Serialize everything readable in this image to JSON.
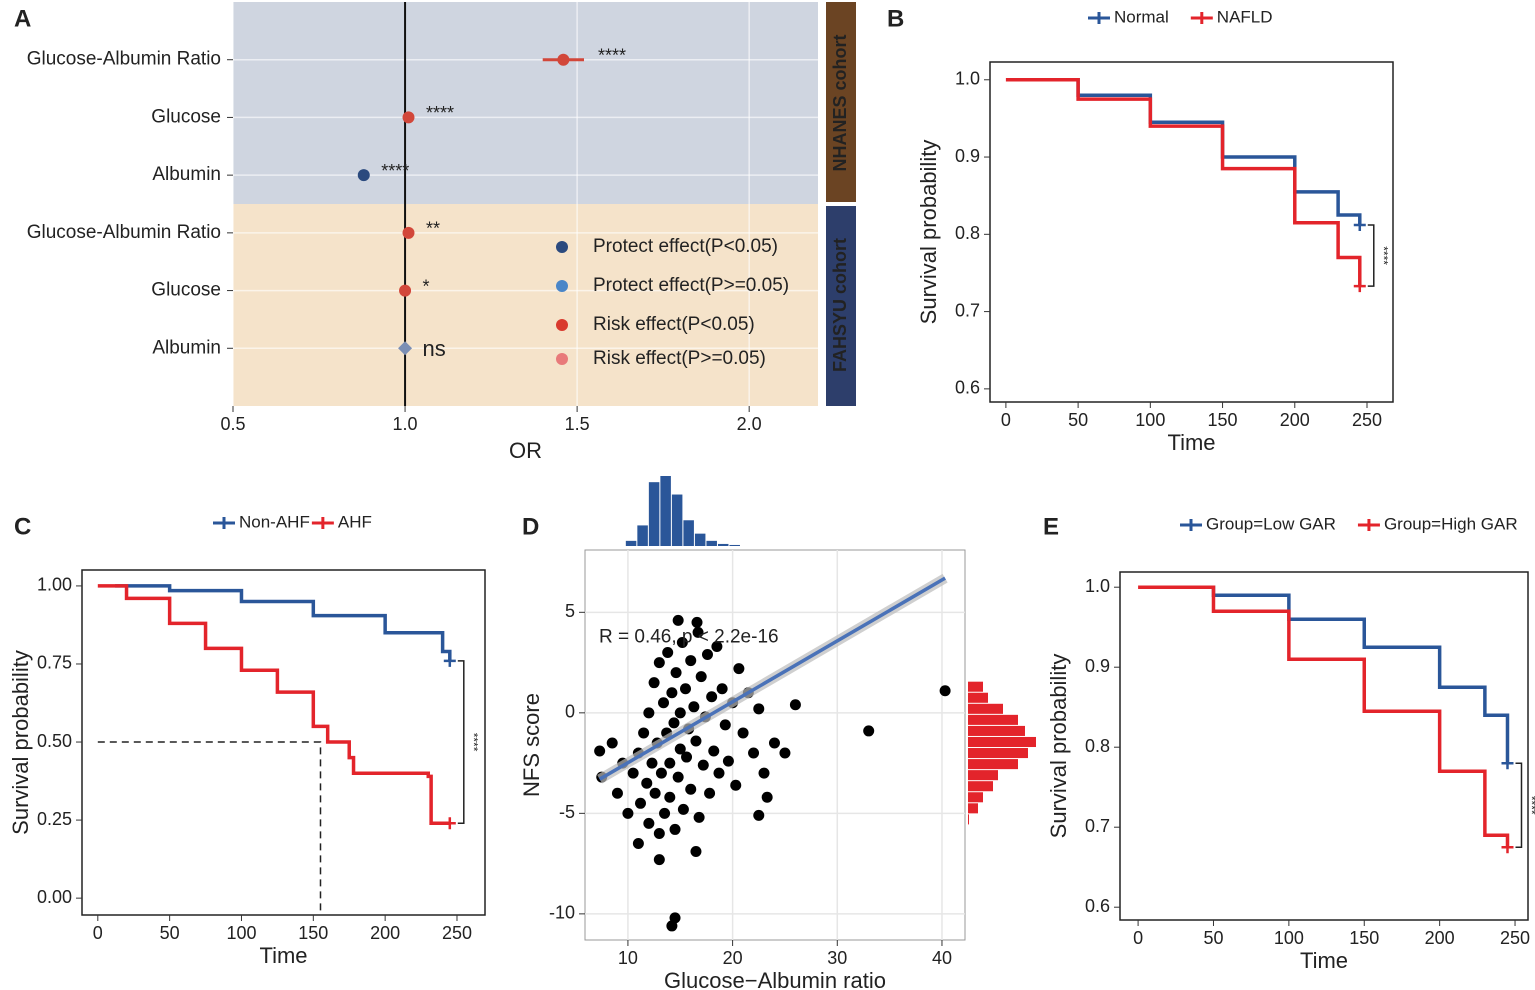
{
  "chart_data": [
    {
      "type": "forest",
      "panel": "A",
      "xlabel": "OR",
      "xlim": [
        0.5,
        2.2
      ],
      "xticks": [
        0.5,
        {
          "value": 1.0,
          "label": "1.0"
        },
        1.5,
        {
          "value": 2.0,
          "label": "2.0"
        }
      ],
      "reference": 1,
      "grid": true,
      "cohorts": [
        {
          "name": "NHANES cohort",
          "color": "#6b4423",
          "background": "#cfd5e0",
          "label_color": "#3d6c9a",
          "categories": [
            "Glucose-Albumin Ratio",
            "Glucose",
            "Albumin"
          ],
          "values": [
            1.46,
            1.01,
            0.88
          ],
          "ci_low": [
            1.4,
            1.0,
            0.87
          ],
          "ci_high": [
            1.52,
            1.02,
            0.89
          ],
          "annotations": [
            "****",
            "****",
            "****"
          ],
          "point_colors": [
            "#d2473a",
            "#d2473a",
            "#2b4a7e"
          ],
          "shapes": [
            "circle",
            "circle",
            "circle"
          ]
        },
        {
          "name": "FAHSYU cohort",
          "color": "#2d3e6b",
          "background": "#f5e3ca",
          "label_color": "#e8a23a",
          "categories": [
            "Glucose-Albumin Ratio",
            "Glucose",
            "Albumin"
          ],
          "values": [
            1.01,
            1.0,
            1.0
          ],
          "ci_low": [
            1.0,
            0.99,
            0.99
          ],
          "ci_high": [
            1.02,
            1.01,
            1.01
          ],
          "annotations": [
            "**",
            "*",
            "ns"
          ],
          "point_colors": [
            "#d2473a",
            "#d2473a",
            "#7b8fb5"
          ],
          "shapes": [
            "circle",
            "circle",
            "diamond"
          ]
        }
      ],
      "legend": [
        {
          "name": "Protect effect(P<0.05)",
          "color": "#2b4a7e"
        },
        {
          "name": "Protect effect(P>=0.05)",
          "color": "#4a86c8"
        },
        {
          "name": "Risk effect(P<0.05)",
          "color": "#d93a2e"
        },
        {
          "name": "Risk effect(P>=0.05)",
          "color": "#e87a7a"
        }
      ]
    },
    {
      "type": "survival",
      "panel": "B",
      "xlabel": "Time",
      "ylabel": "Survival probability",
      "significance": "****",
      "xlim": [
        -11,
        268
      ],
      "ylim": [
        0.583,
        1.023
      ],
      "xticks": [
        0,
        50,
        100,
        150,
        200,
        250
      ],
      "yticks": [
        0.6,
        0.7,
        0.8,
        0.9,
        {
          "value": 1.0,
          "label": "1.0"
        }
      ],
      "series": [
        {
          "name": "Normal",
          "color": "#2a5699",
          "x": [
            10,
            50,
            100,
            150,
            200,
            230,
            245
          ],
          "values": [
            1.0,
            0.98,
            0.945,
            0.9,
            0.855,
            0.825,
            0.812
          ]
        },
        {
          "name": "NAFLD",
          "color": "#e3242b",
          "x": [
            0,
            50,
            100,
            150,
            200,
            230,
            245
          ],
          "values": [
            1.0,
            0.975,
            0.94,
            0.885,
            0.815,
            0.77,
            0.733
          ]
        }
      ]
    },
    {
      "type": "survival",
      "panel": "C",
      "xlabel": "Time",
      "ylabel": "Survival probability",
      "significance": "****",
      "xlim": [
        -11,
        269.5
      ],
      "ylim": [
        -0.054,
        1.051
      ],
      "xticks": [
        0,
        50,
        100,
        150,
        200,
        250
      ],
      "yticks": [
        {
          "value": 0,
          "label": "0.00"
        },
        0.25,
        {
          "value": 0.5,
          "label": "0.50"
        },
        0.75,
        {
          "value": 1,
          "label": "1.00"
        }
      ],
      "median_line": [
        155,
        0.5
      ],
      "series": [
        {
          "name": "Non-AHF",
          "color": "#2a5699",
          "x": [
            12,
            50,
            100,
            150,
            200,
            240,
            245
          ],
          "values": [
            1.0,
            0.985,
            0.95,
            0.905,
            0.85,
            0.79,
            0.76
          ]
        },
        {
          "name": "AHF",
          "color": "#e3242b",
          "x": [
            0,
            20,
            50,
            75,
            100,
            125,
            150,
            160,
            175,
            178,
            230,
            232,
            245
          ],
          "values": [
            1.0,
            0.96,
            0.88,
            0.8,
            0.73,
            0.66,
            0.55,
            0.5,
            0.45,
            0.4,
            0.39,
            0.24,
            0.24
          ]
        }
      ]
    },
    {
      "type": "scatter",
      "panel": "D",
      "xlabel": "Glucose−Albumin ratio",
      "ylabel": "NFS score",
      "annotation": "R = 0.46, p < 2.2e-16",
      "xlim": [
        5.9,
        42.2
      ],
      "ylim": [
        -11.3,
        8.1
      ],
      "xticks": [
        10,
        20,
        30,
        40
      ],
      "yticks": [
        -10,
        -5,
        0,
        5
      ],
      "grid": true,
      "color": "#000000",
      "x": [
        10.5,
        11,
        11.2,
        11.5,
        11.8,
        12,
        12,
        12.3,
        12.5,
        12.6,
        12.8,
        13,
        13,
        13.2,
        13.4,
        13.5,
        13.7,
        13.8,
        14,
        14,
        14.2,
        14.4,
        14.5,
        14.6,
        14.8,
        15,
        15,
        15.2,
        15.3,
        15.5,
        15.6,
        15.8,
        16,
        16,
        16.3,
        16.5,
        16.7,
        16.8,
        17,
        17.2,
        17.4,
        17.6,
        17.8,
        18,
        18.2,
        18.5,
        18.7,
        19,
        19.3,
        19.6,
        20,
        20.3,
        20.6,
        21,
        21.5,
        22,
        22.5,
        23,
        23.3,
        24,
        10,
        9.5,
        9,
        8.5,
        7.3,
        7.5,
        11,
        13,
        16.5,
        26,
        33,
        40.3,
        14.5,
        14.2,
        14.8,
        16.6,
        22.5,
        25
      ],
      "values": [
        -3,
        -2,
        -4.5,
        -1,
        -3.5,
        -5.5,
        0,
        -2.5,
        1.5,
        -4,
        -1.5,
        -6,
        2.5,
        -3,
        0.5,
        -5,
        -1,
        3,
        -2.5,
        -4.2,
        1,
        -0.5,
        -5.8,
        2,
        -3.2,
        0,
        -1.8,
        3.5,
        -4.8,
        1.2,
        -2.2,
        -0.8,
        2.6,
        -3.8,
        0.3,
        -1.4,
        4,
        -5.2,
        1.8,
        -2.6,
        -0.2,
        2.9,
        -4,
        0.8,
        -1.9,
        3.3,
        -3,
        1.2,
        -0.6,
        -2.4,
        0.5,
        -3.6,
        2.2,
        -1,
        1,
        -2,
        0.2,
        -3,
        -4.2,
        -1.5,
        -5,
        -2.5,
        -4,
        -1.5,
        -1.9,
        -3.2,
        -6.5,
        -7.3,
        -6.9,
        0.4,
        -0.9,
        1.1,
        -10.2,
        -10.6,
        4.6,
        4.5,
        -5.1,
        -2
      ],
      "fit_line": {
        "color": "#4a72b8",
        "x": [
          7.3,
          40.3
        ],
        "values": [
          -3.3,
          6.7
        ]
      },
      "x_histogram": {
        "color": "#2a5699",
        "bins": [
          9.8,
          10.9,
          12.0,
          13.1,
          14.2,
          15.3,
          16.4,
          17.5,
          18.6,
          19.7,
          20.8
        ],
        "counts": [
          5,
          20,
          62,
          68,
          50,
          25,
          12,
          5,
          2,
          1
        ]
      },
      "y_histogram": {
        "color": "#e3242b",
        "bins": [
          -5.6,
          -5.05,
          -4.5,
          -3.95,
          -3.4,
          -2.85,
          -2.3,
          -1.75,
          -1.2,
          -0.65,
          -0.1,
          0.45,
          1.0,
          1.55
        ],
        "counts": [
          1,
          10,
          15,
          25,
          30,
          50,
          60,
          68,
          57,
          50,
          35,
          20,
          15
        ]
      }
    },
    {
      "type": "survival",
      "panel": "E",
      "xlabel": "Time",
      "ylabel": "Survival probability",
      "significance": "****",
      "xlim": [
        -12,
        258.6
      ],
      "ylim": [
        0.584,
        1.019
      ],
      "xticks": [
        0,
        50,
        100,
        150,
        200,
        250
      ],
      "yticks": [
        0.6,
        0.7,
        0.8,
        0.9,
        {
          "value": 1.0,
          "label": "1.0"
        }
      ],
      "series": [
        {
          "name": "Group=Low GAR",
          "color": "#2a5699",
          "x": [
            10,
            50,
            100,
            150,
            200,
            230,
            245
          ],
          "values": [
            1.0,
            0.99,
            0.96,
            0.925,
            0.875,
            0.84,
            0.78
          ]
        },
        {
          "name": "Group=High GAR",
          "color": "#e3242b",
          "x": [
            0,
            50,
            100,
            150,
            200,
            230,
            245
          ],
          "values": [
            1.0,
            0.97,
            0.91,
            0.845,
            0.77,
            0.69,
            0.675
          ]
        }
      ]
    }
  ]
}
